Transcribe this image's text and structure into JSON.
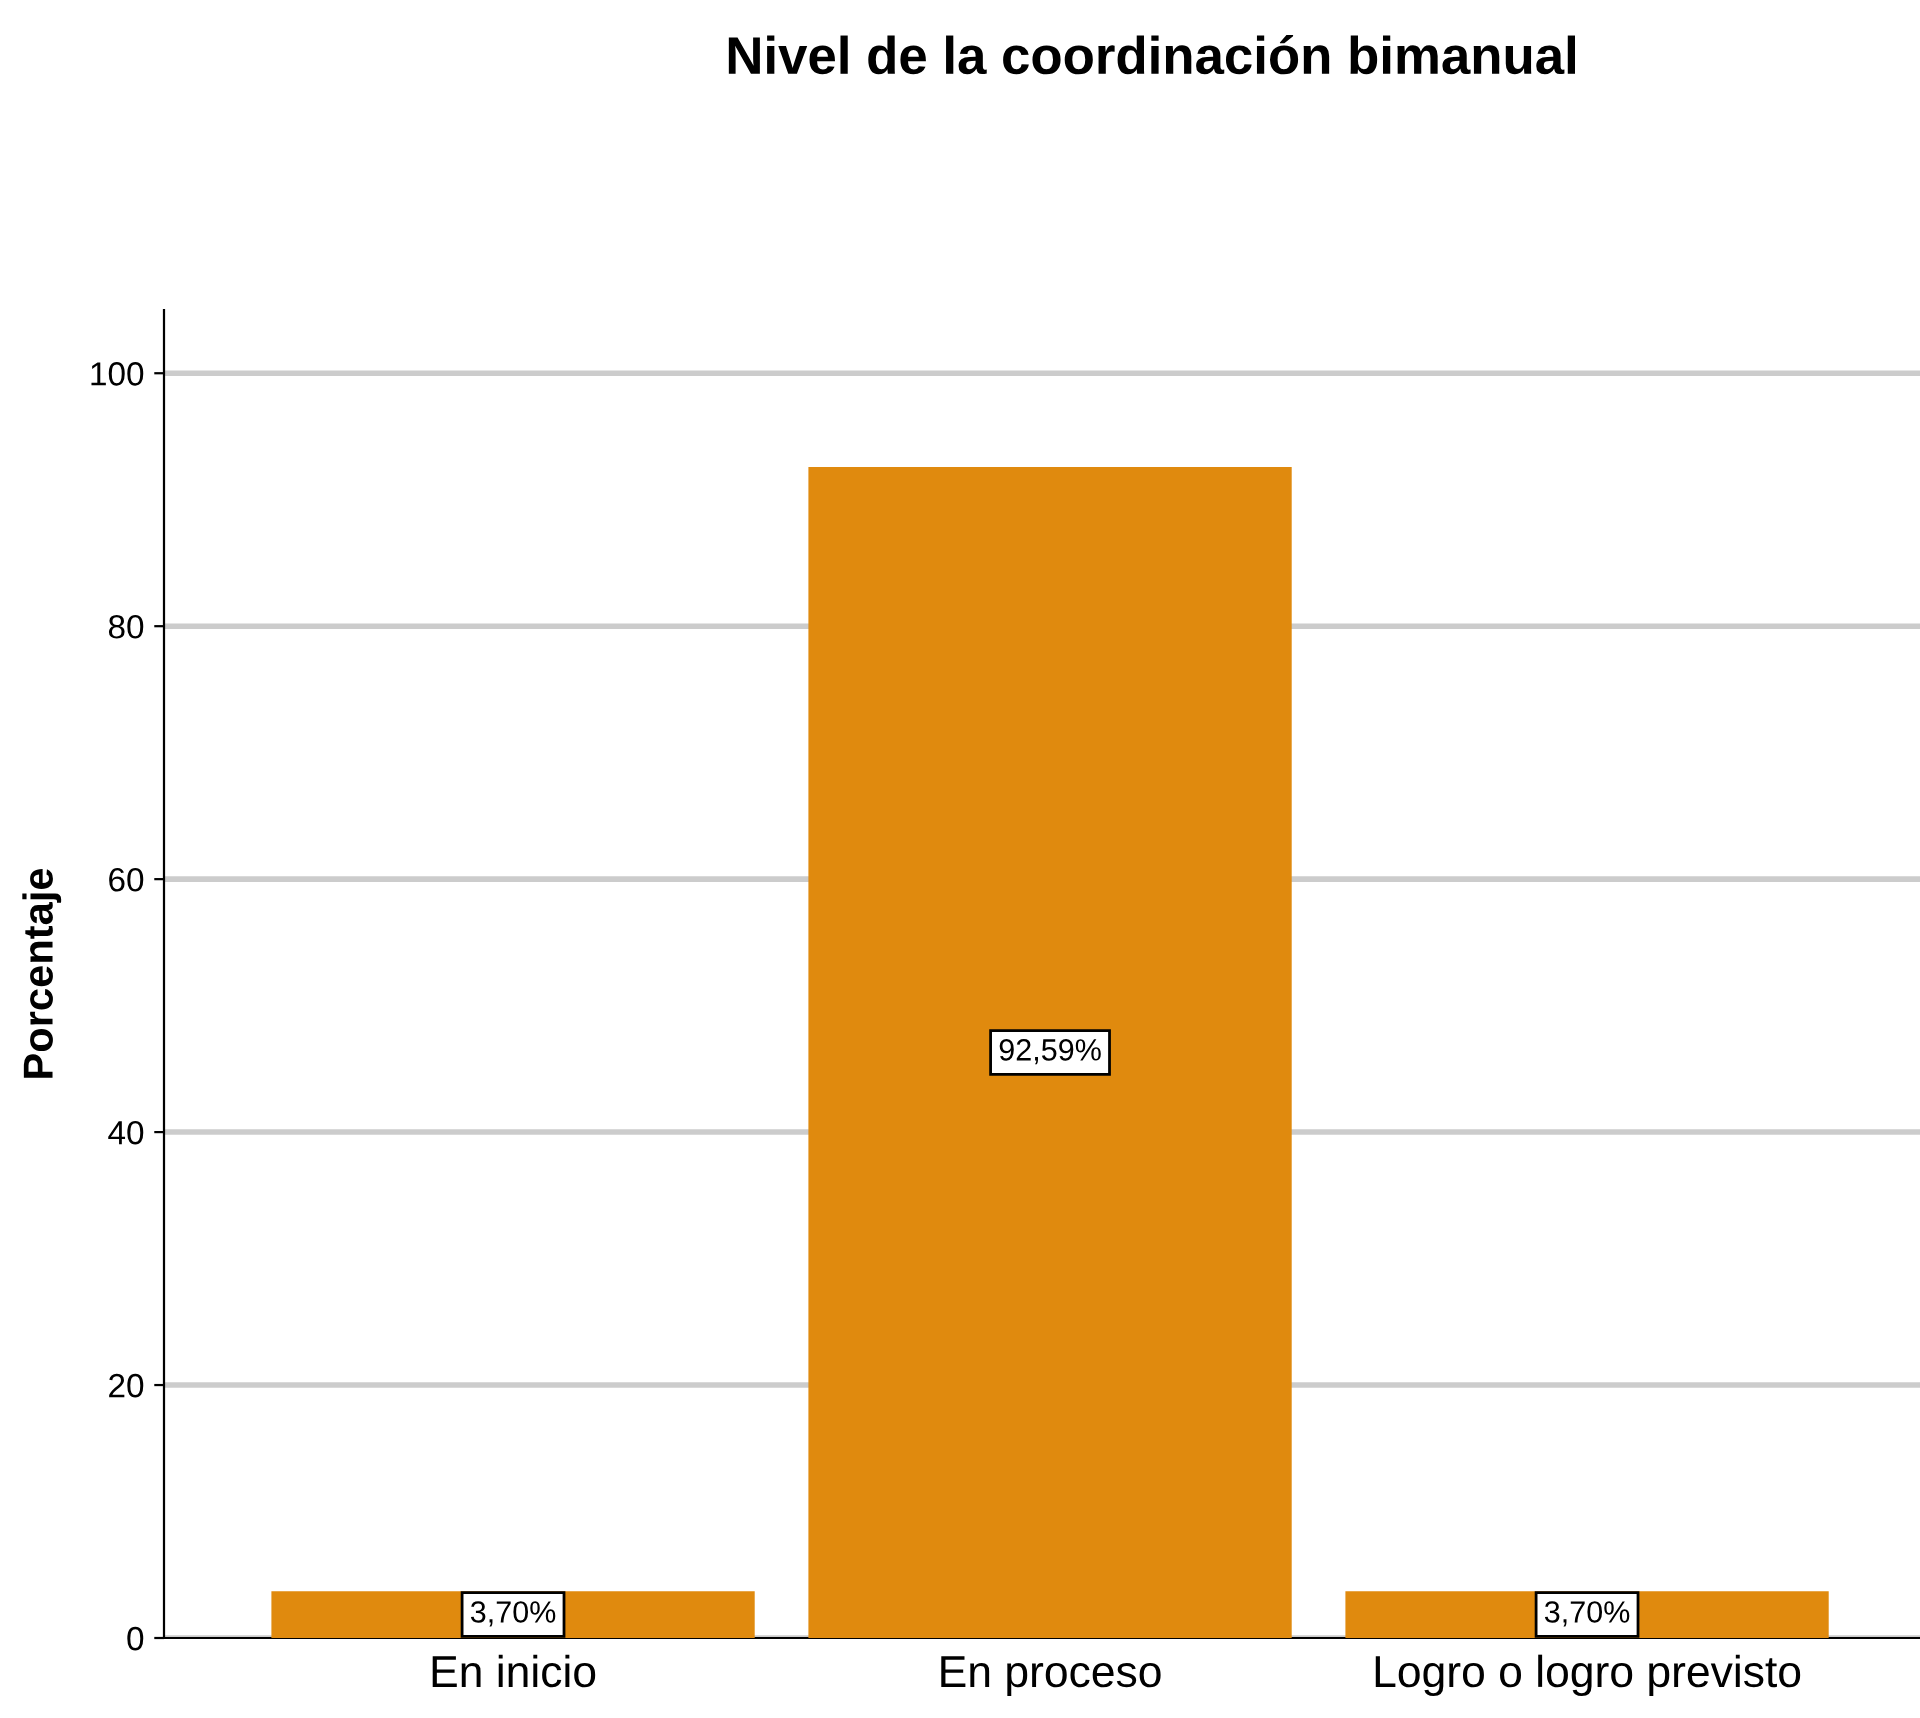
{
  "chart_data": {
    "type": "bar",
    "title": "Nivel de la coordinación bimanual",
    "ylabel": "Porcentaje",
    "categories": [
      "En inicio",
      "En proceso",
      "Logro o logro previsto"
    ],
    "values": [
      3.7,
      92.59,
      3.7
    ],
    "value_labels": [
      "3,70%",
      "92,59%",
      "3,70%"
    ],
    "color": "#e08a0e",
    "ylim": [
      0,
      105
    ],
    "yticks": [
      0,
      20,
      40,
      60,
      80,
      100
    ],
    "grid": "y",
    "legend": false
  }
}
